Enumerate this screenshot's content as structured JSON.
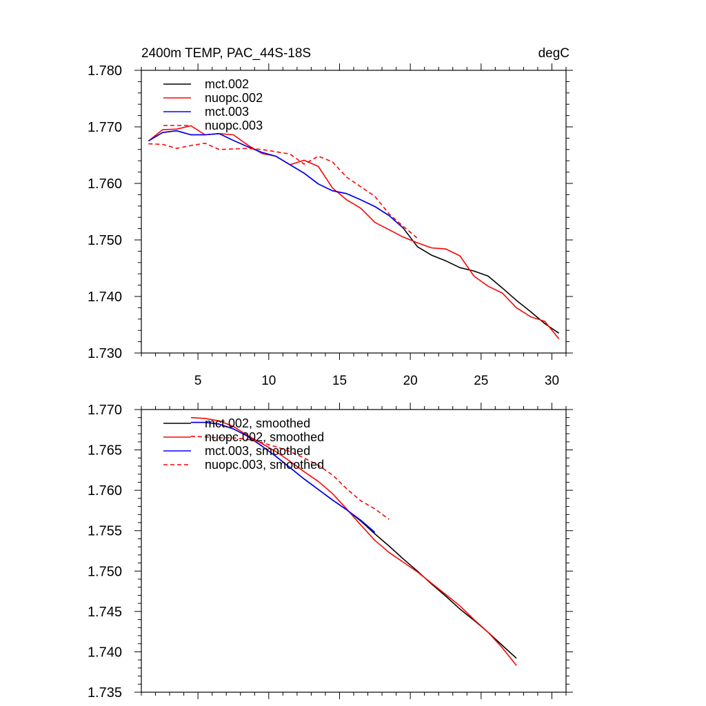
{
  "chart_data": [
    {
      "type": "line",
      "title": "2400m TEMP, PAC_44S-18S",
      "units": "degC",
      "xlim": [
        1,
        31
      ],
      "ylim": [
        1.73,
        1.78
      ],
      "x_ticks": [
        5,
        10,
        15,
        20,
        25,
        30
      ],
      "y_ticks": [
        1.73,
        1.74,
        1.75,
        1.76,
        1.77,
        1.78
      ],
      "y_tick_labels": [
        "1.730",
        "1.740",
        "1.750",
        "1.760",
        "1.770",
        "1.780"
      ],
      "grid": false,
      "legend_position": "top-left",
      "series": [
        {
          "name": "mct.002",
          "color": "#000000",
          "dash": "solid",
          "x": [
            1.5,
            2.5,
            3.5,
            4.5,
            5.5,
            6.5,
            7.5,
            8.5,
            9.5,
            10.5,
            11.5,
            12.5,
            13.5,
            14.5,
            15.5,
            16.5,
            17.5,
            18.5,
            19.5,
            20.5,
            21.5,
            22.5,
            23.5,
            24.5,
            25.5,
            26.5,
            27.5,
            28.5,
            29.5,
            30.5
          ],
          "y": [
            1.7675,
            1.769,
            1.7693,
            1.7686,
            1.7686,
            1.7688,
            1.7676,
            1.7665,
            1.7655,
            1.7648,
            1.7633,
            1.7618,
            1.7599,
            1.7587,
            1.7582,
            1.7571,
            1.7559,
            1.7543,
            1.7521,
            1.7488,
            1.7473,
            1.7463,
            1.7451,
            1.7445,
            1.7436,
            1.7415,
            1.7393,
            1.7373,
            1.7352,
            1.7335
          ]
        },
        {
          "name": "nuopc.002",
          "color": "#ff0000",
          "dash": "solid",
          "x": [
            1.5,
            2.5,
            3.5,
            4.5,
            5.5,
            6.5,
            7.5,
            8.5,
            9.5,
            10.5,
            11.5,
            12.5,
            13.5,
            14.5,
            15.5,
            16.5,
            17.5,
            18.5,
            19.5,
            20.5,
            21.5,
            22.5,
            23.5,
            24.5,
            25.5,
            26.5,
            27.5,
            28.5,
            29.5,
            30.5
          ],
          "y": [
            1.7675,
            1.7695,
            1.7696,
            1.7702,
            1.7686,
            1.7688,
            1.7686,
            1.7668,
            1.7653,
            1.7648,
            1.7633,
            1.7641,
            1.763,
            1.7592,
            1.7571,
            1.7556,
            1.7531,
            1.7518,
            1.7505,
            1.7495,
            1.7486,
            1.7484,
            1.7472,
            1.7436,
            1.7418,
            1.7406,
            1.738,
            1.7364,
            1.7356,
            1.7325
          ]
        },
        {
          "name": "mct.003",
          "color": "#0000ff",
          "dash": "solid",
          "x": [
            1.5,
            2.5,
            3.5,
            4.5,
            5.5,
            6.5,
            7.5,
            8.5,
            9.5,
            10.5,
            11.5,
            12.5,
            13.5,
            14.5,
            15.5,
            16.5,
            17.5,
            18.5,
            19.5
          ],
          "y": [
            1.7675,
            1.769,
            1.7693,
            1.7686,
            1.7686,
            1.7688,
            1.7676,
            1.7665,
            1.7655,
            1.7648,
            1.7633,
            1.7618,
            1.7599,
            1.7587,
            1.7582,
            1.7571,
            1.7559,
            1.7543,
            1.7521
          ]
        },
        {
          "name": "nuopc.003",
          "color": "#ff0000",
          "dash": "dashed",
          "x": [
            1.5,
            2.5,
            3.5,
            4.5,
            5.5,
            6.5,
            7.5,
            8.5,
            9.5,
            10.5,
            11.5,
            12.5,
            13.5,
            14.5,
            15.5,
            16.5,
            17.5,
            18.5,
            19.5,
            20.5
          ],
          "y": [
            1.767,
            1.7669,
            1.7662,
            1.7667,
            1.7671,
            1.766,
            1.7661,
            1.7662,
            1.766,
            1.7656,
            1.7652,
            1.7634,
            1.7648,
            1.7638,
            1.7611,
            1.7594,
            1.7577,
            1.7546,
            1.7524,
            1.7503
          ]
        }
      ]
    },
    {
      "type": "line",
      "title": "",
      "xlim": [
        1,
        31
      ],
      "ylim": [
        1.735,
        1.77
      ],
      "y_ticks": [
        1.735,
        1.74,
        1.745,
        1.75,
        1.755,
        1.76,
        1.765,
        1.77
      ],
      "y_tick_labels": [
        "1.735",
        "1.740",
        "1.745",
        "1.750",
        "1.755",
        "1.760",
        "1.765",
        "1.770"
      ],
      "grid": false,
      "legend_position": "top-left",
      "series": [
        {
          "name": "mct.002, smoothed",
          "color": "#000000",
          "dash": "solid",
          "x": [
            4.5,
            5.5,
            6.5,
            7.5,
            8.5,
            9.5,
            10.5,
            11.5,
            12.5,
            13.5,
            14.5,
            15.5,
            16.5,
            17.5,
            18.5,
            19.5,
            20.5,
            21.5,
            22.5,
            23.5,
            24.5,
            25.5,
            26.5,
            27.5
          ],
          "y": [
            1.7684,
            1.7684,
            1.7682,
            1.7676,
            1.7667,
            1.7655,
            1.7642,
            1.7628,
            1.7614,
            1.7601,
            1.7588,
            1.7576,
            1.7562,
            1.7546,
            1.7531,
            1.7515,
            1.75,
            1.7484,
            1.7469,
            1.7453,
            1.7439,
            1.7424,
            1.7408,
            1.7392
          ]
        },
        {
          "name": "nuopc.002, smoothed",
          "color": "#ff0000",
          "dash": "solid",
          "x": [
            4.5,
            5.5,
            6.5,
            7.5,
            8.5,
            9.5,
            10.5,
            11.5,
            12.5,
            13.5,
            14.5,
            15.5,
            16.5,
            17.5,
            18.5,
            19.5,
            20.5,
            21.5,
            22.5,
            23.5,
            24.5,
            25.5,
            26.5,
            27.5
          ],
          "y": [
            1.769,
            1.7689,
            1.7686,
            1.7679,
            1.7668,
            1.7658,
            1.7648,
            1.7636,
            1.7623,
            1.7611,
            1.7596,
            1.7577,
            1.7557,
            1.7538,
            1.7523,
            1.7511,
            1.7499,
            1.7485,
            1.7471,
            1.7457,
            1.744,
            1.7424,
            1.7405,
            1.7383
          ]
        },
        {
          "name": "mct.003, smoothed",
          "color": "#0000ff",
          "dash": "solid",
          "x": [
            4.5,
            5.5,
            6.5,
            7.5,
            8.5,
            9.5,
            10.5,
            11.5,
            12.5,
            13.5,
            14.5,
            15.5,
            16.5,
            17.5
          ],
          "y": [
            1.7684,
            1.7684,
            1.7682,
            1.7676,
            1.7667,
            1.7655,
            1.7642,
            1.7628,
            1.7614,
            1.7601,
            1.7588,
            1.7576,
            1.7563,
            1.7548
          ]
        },
        {
          "name": "nuopc.003, smoothed",
          "color": "#ff0000",
          "dash": "dashed",
          "x": [
            4.5,
            5.5,
            6.5,
            7.5,
            8.5,
            9.5,
            10.5,
            11.5,
            12.5,
            13.5,
            14.5,
            15.5,
            16.5,
            17.5,
            18.5
          ],
          "y": [
            1.7667,
            1.7666,
            1.7665,
            1.7665,
            1.7663,
            1.7659,
            1.7654,
            1.7648,
            1.764,
            1.7631,
            1.7619,
            1.7602,
            1.7587,
            1.7577,
            1.7564
          ]
        }
      ]
    }
  ]
}
